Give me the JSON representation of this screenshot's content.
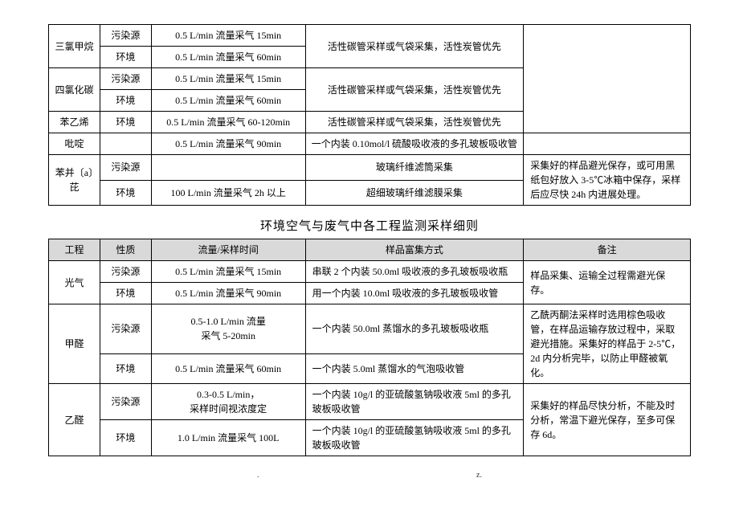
{
  "table1": {
    "rows": [
      {
        "name": "三氯甲烷",
        "rowspan_name": 2,
        "nature": "污染源",
        "flow": "0.5 L/min 流量采气 15min",
        "method": "活性碳管采样或气袋采集，活性炭管优先",
        "method_rowspan": 2,
        "remark": "",
        "remark_rowspan": 5
      },
      {
        "nature": "环境",
        "flow": "0.5 L/min 流量采气 60min"
      },
      {
        "name": "四氯化碳",
        "rowspan_name": 2,
        "nature": "污染源",
        "flow": "0.5 L/min 流量采气 15min",
        "method": "活性碳管采样或气袋采集，活性炭管优先",
        "method_rowspan": 2
      },
      {
        "nature": "环境",
        "flow": "0.5 L/min 流量采气 60min"
      },
      {
        "name": "苯乙烯",
        "rowspan_name": 1,
        "nature": "环境",
        "flow": "0.5 L/min 流量采气 60-120min",
        "method": "活性碳管采样或气袋采集，活性炭管优先",
        "method_rowspan": 1
      },
      {
        "name": "吡啶",
        "rowspan_name": 1,
        "nature": "",
        "flow": "0.5 L/min 流量采气 90min",
        "method": "一个内装 0.10mol/l 硫酸吸收液的多孔玻板吸收管",
        "method_rowspan": 1,
        "remark": "",
        "remark_rowspan": 1
      },
      {
        "name": "苯并〔a〕芘",
        "rowspan_name": 2,
        "nature": "污染源",
        "flow": "",
        "method": "玻璃纤维滤筒采集",
        "method_rowspan": 1,
        "remark": "采集好的样品避光保存，或可用黑纸包好放入 3-5℃冰箱中保存，采样后应尽快 24h 内进展处理。",
        "remark_rowspan": 2
      },
      {
        "nature": "环境",
        "flow": "100 L/min 流量采气 2h 以上",
        "method": "超细玻璃纤维滤膜采集",
        "method_rowspan": 1
      }
    ]
  },
  "section_title": "环境空气与废气中各工程监测采样细则",
  "table2": {
    "headers": [
      "工程",
      "性质",
      "流量/采样时间",
      "样品富集方式",
      "备注"
    ],
    "rows": [
      {
        "name": "光气",
        "rowspan_name": 2,
        "nature": "污染源",
        "flow": "0.5 L/min 流量采气 15min",
        "method": "串联 2 个内装 50.0ml 吸收液的多孔玻板吸收瓶",
        "remark": "样品采集、运输全过程需避光保存。",
        "remark_rowspan": 2
      },
      {
        "nature": "环境",
        "flow": "0.5 L/min 流量采气 90min",
        "method": "用一个内装 10.0ml 吸收液的多孔玻板吸收管"
      },
      {
        "name": "甲醛",
        "rowspan_name": 2,
        "nature": "污染源",
        "flow": "0.5-1.0 L/min 流量\n采气 5-20min",
        "method": "一个内装 50.0ml 蒸馏水的多孔玻板吸收瓶",
        "remark": "乙酰丙酮法采样时选用棕色吸收管，在样品运输存放过程中，采取避光措施。采集好的样品于 2-5℃，2d 内分析完毕，以防止甲醛被氧化。",
        "remark_rowspan": 2
      },
      {
        "nature": "环境",
        "flow": "0.5 L/min 流量采气 60min",
        "method": "一个内装 5.0ml 蒸馏水的气泡吸收管"
      },
      {
        "name": "乙醛",
        "rowspan_name": 2,
        "nature": "污染源",
        "flow": "0.3-0.5 L/min，\n采样时间视浓度定",
        "method": "一个内装 10g/l 的亚硫酸氢钠吸收液 5ml 的多孔玻板吸收管",
        "remark": "采集好的样品尽快分析，不能及时分析，常温下避光保存，至多可保存 6d。",
        "remark_rowspan": 2
      },
      {
        "nature": "环境",
        "flow": "1.0 L/min 流量采气 100L",
        "method": "一个内装 10g/l 的亚硫酸氢钠吸收液 5ml 的多孔玻板吸收管"
      }
    ]
  },
  "footer": {
    "left": ".",
    "right": "z."
  }
}
